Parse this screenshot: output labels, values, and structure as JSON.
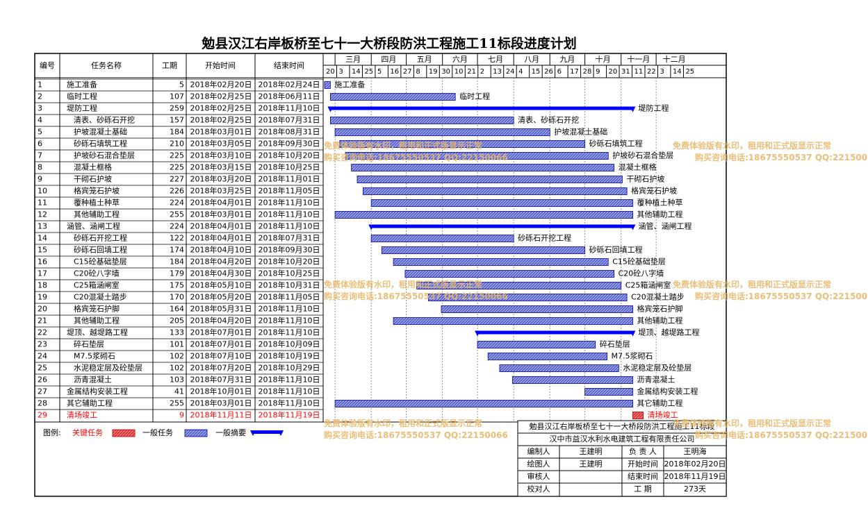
{
  "title": "勉县汉江右岸板桥至七十一大桥段防洪工程施工11标段进度计划",
  "columns": [
    "编号",
    "任务名称",
    "工期",
    "开始时间",
    "结束时间"
  ],
  "months": [
    "三月",
    "四月",
    "五月",
    "六月",
    "七月",
    "八月",
    "九月",
    "十月",
    "十一月",
    "十二月"
  ],
  "day_ticks": [
    "20",
    "3",
    "14",
    "25",
    "5",
    "16",
    "27",
    "8",
    "19",
    "30",
    "10",
    "21",
    "2",
    "13",
    "24",
    "4",
    "15",
    "26",
    "6",
    "17",
    "28",
    "9",
    "20",
    "31",
    "11",
    "22",
    "3",
    "14",
    "25"
  ],
  "chart_data": {
    "type": "gantt",
    "title": "勉县汉江右岸板桥至七十一大桥段防洪工程施工11标段进度计划",
    "tasks": [
      {
        "id": "1",
        "name": "施工准备",
        "level": 0,
        "kind": "normal",
        "duration": "5",
        "start": "2018年02月20日",
        "end": "2018年02月24日",
        "s": "2018-02-20",
        "e": "2018-02-24"
      },
      {
        "id": "2",
        "name": "临时工程",
        "level": 0,
        "kind": "normal",
        "duration": "107",
        "start": "2018年02月25日",
        "end": "2018年06月11日",
        "s": "2018-02-25",
        "e": "2018-06-11"
      },
      {
        "id": "3",
        "name": "堤防工程",
        "level": 0,
        "kind": "summary",
        "duration": "259",
        "start": "2018年02月25日",
        "end": "2018年11月10日",
        "s": "2018-02-25",
        "e": "2018-11-10"
      },
      {
        "id": "4",
        "name": "清表、砂砾石开挖",
        "level": 1,
        "kind": "normal",
        "duration": "157",
        "start": "2018年02月25日",
        "end": "2018年07月31日",
        "s": "2018-02-25",
        "e": "2018-07-31"
      },
      {
        "id": "5",
        "name": "护坡混凝土基础",
        "level": 1,
        "kind": "normal",
        "duration": "184",
        "start": "2018年03月01日",
        "end": "2018年08月31日",
        "s": "2018-03-01",
        "e": "2018-08-31"
      },
      {
        "id": "6",
        "name": "砂砾石填筑工程",
        "level": 1,
        "kind": "normal",
        "duration": "210",
        "start": "2018年03月05日",
        "end": "2018年09月30日",
        "s": "2018-03-05",
        "e": "2018-09-30"
      },
      {
        "id": "7",
        "name": "护坡砂石混合垫层",
        "level": 1,
        "kind": "normal",
        "duration": "225",
        "start": "2018年03月10日",
        "end": "2018年10月20日",
        "s": "2018-03-10",
        "e": "2018-10-20"
      },
      {
        "id": "8",
        "name": "混凝土框格",
        "level": 1,
        "kind": "normal",
        "duration": "225",
        "start": "2018年03月15日",
        "end": "2018年10月25日",
        "s": "2018-03-15",
        "e": "2018-10-25"
      },
      {
        "id": "9",
        "name": "干砌石护坡",
        "level": 1,
        "kind": "normal",
        "duration": "227",
        "start": "2018年03月20日",
        "end": "2018年11月01日",
        "s": "2018-03-20",
        "e": "2018-11-01"
      },
      {
        "id": "10",
        "name": "格宾笼石护坡",
        "level": 1,
        "kind": "normal",
        "duration": "226",
        "start": "2018年03月25日",
        "end": "2018年11月05日",
        "s": "2018-03-25",
        "e": "2018-11-05"
      },
      {
        "id": "11",
        "name": "覆种植土种草",
        "level": 1,
        "kind": "normal",
        "duration": "224",
        "start": "2018年04月01日",
        "end": "2018年11月10日",
        "s": "2018-04-01",
        "e": "2018-11-10"
      },
      {
        "id": "12",
        "name": "其他辅助工程",
        "level": 1,
        "kind": "normal",
        "duration": "255",
        "start": "2018年03月01日",
        "end": "2018年11月10日",
        "s": "2018-03-01",
        "e": "2018-11-10"
      },
      {
        "id": "13",
        "name": "涵管、涵闸工程",
        "level": 0,
        "kind": "summary",
        "duration": "224",
        "start": "2018年04月01日",
        "end": "2018年11月10日",
        "s": "2018-04-01",
        "e": "2018-11-10"
      },
      {
        "id": "14",
        "name": "砂砾石开挖工程",
        "level": 1,
        "kind": "normal",
        "duration": "122",
        "start": "2018年04月01日",
        "end": "2018年07月31日",
        "s": "2018-04-01",
        "e": "2018-07-31"
      },
      {
        "id": "15",
        "name": "砂砾石回填工程",
        "level": 1,
        "kind": "normal",
        "duration": "174",
        "start": "2018年04月10日",
        "end": "2018年09月30日",
        "s": "2018-04-10",
        "e": "2018-09-30"
      },
      {
        "id": "16",
        "name": "C15砼基础垫层",
        "level": 1,
        "kind": "normal",
        "duration": "184",
        "start": "2018年04月20日",
        "end": "2018年10月20日",
        "s": "2018-04-20",
        "e": "2018-10-20"
      },
      {
        "id": "17",
        "name": "C20砼八字墙",
        "level": 1,
        "kind": "normal",
        "duration": "179",
        "start": "2018年04月30日",
        "end": "2018年10月25日",
        "s": "2018-04-30",
        "e": "2018-10-25"
      },
      {
        "id": "18",
        "name": "C25箱涵闸室",
        "level": 1,
        "kind": "normal",
        "duration": "175",
        "start": "2018年05月10日",
        "end": "2018年10月31日",
        "s": "2018-05-10",
        "e": "2018-10-31"
      },
      {
        "id": "19",
        "name": "C20混凝土踏步",
        "level": 1,
        "kind": "normal",
        "duration": "170",
        "start": "2018年05月20日",
        "end": "2018年11月05日",
        "s": "2018-05-20",
        "e": "2018-11-05"
      },
      {
        "id": "20",
        "name": "格宾笼石护脚",
        "level": 1,
        "kind": "normal",
        "duration": "164",
        "start": "2018年05月31日",
        "end": "2018年11月10日",
        "s": "2018-05-31",
        "e": "2018-11-10"
      },
      {
        "id": "21",
        "name": "其他辅助工程",
        "level": 1,
        "kind": "normal",
        "duration": "205",
        "start": "2018年04月20日",
        "end": "2018年11月10日",
        "s": "2018-04-20",
        "e": "2018-11-10"
      },
      {
        "id": "22",
        "name": "堤顶、越堤路工程",
        "level": 0,
        "kind": "summary",
        "duration": "133",
        "start": "2018年07月01日",
        "end": "2018年11月10日",
        "s": "2018-07-01",
        "e": "2018-11-10"
      },
      {
        "id": "23",
        "name": "碎石垫层",
        "level": 1,
        "kind": "normal",
        "duration": "101",
        "start": "2018年07月01日",
        "end": "2018年10月09日",
        "s": "2018-07-01",
        "e": "2018-10-09"
      },
      {
        "id": "24",
        "name": "M7.5浆砌石",
        "level": 1,
        "kind": "normal",
        "duration": "102",
        "start": "2018年07月10日",
        "end": "2018年10月19日",
        "s": "2018-07-10",
        "e": "2018-10-19"
      },
      {
        "id": "25",
        "name": "水泥稳定层及砼垫层",
        "level": 1,
        "kind": "normal",
        "duration": "102",
        "start": "2018年07月20日",
        "end": "2018年10月29日",
        "s": "2018-07-20",
        "e": "2018-10-29"
      },
      {
        "id": "26",
        "name": "沥青混凝土",
        "level": 1,
        "kind": "normal",
        "duration": "103",
        "start": "2018年07月31日",
        "end": "2018年11月10日",
        "s": "2018-07-31",
        "e": "2018-11-10"
      },
      {
        "id": "27",
        "name": "金属结构安装工程",
        "level": 0,
        "kind": "normal",
        "duration": "41",
        "start": "2018年10月01日",
        "end": "2018年11月10日",
        "s": "2018-10-01",
        "e": "2018-11-10"
      },
      {
        "id": "28",
        "name": "其它辅助工程",
        "level": 0,
        "kind": "normal",
        "duration": "255",
        "start": "2018年03月01日",
        "end": "2018年11月10日",
        "s": "2018-03-01",
        "e": "2018-11-10"
      },
      {
        "id": "29",
        "name": "清场竣工",
        "level": 0,
        "kind": "critical",
        "duration": "9",
        "start": "2018年11月11日",
        "end": "2018年11月19日",
        "s": "2018-11-11",
        "e": "2018-11-19"
      }
    ],
    "x_range": [
      "2018-02-20",
      "2018-12-27"
    ],
    "grid": true
  },
  "legend": {
    "label": "图例:",
    "items": [
      {
        "label": "关键任务",
        "kind": "critical",
        "color": "#ff0000"
      },
      {
        "label": "一般任务",
        "kind": "normal",
        "color": "#2020c0"
      },
      {
        "label": "一般摘要",
        "kind": "summary",
        "color": "#0000ff"
      }
    ]
  },
  "info_box": {
    "project": "勉县汉江右岸板桥至七十一大桥段防洪工程施工11标段",
    "company": "汉中市益汉水利水电建筑工程有限责任公司",
    "rows": [
      [
        "编制人",
        "王建明",
        "负 责 人",
        "王明海"
      ],
      [
        "绘图人",
        "王建明",
        "开始时间",
        "2018年02月20日"
      ],
      [
        "审核人",
        "",
        "结束时间",
        "2018年11月19日"
      ],
      [
        "校对人",
        "",
        "工    期",
        "273天"
      ]
    ]
  },
  "watermark": {
    "line1": "免费体验版有水印，租用和正式版显示正常",
    "line2": "购买咨询电话:18675550537 QQ:22150066"
  },
  "colors": {
    "bar_fill": "#6a74d8",
    "bar_stroke": "#0000a0",
    "summary": "#0000ff",
    "critical": "#ff0000",
    "watermark": "#e8b86a"
  }
}
